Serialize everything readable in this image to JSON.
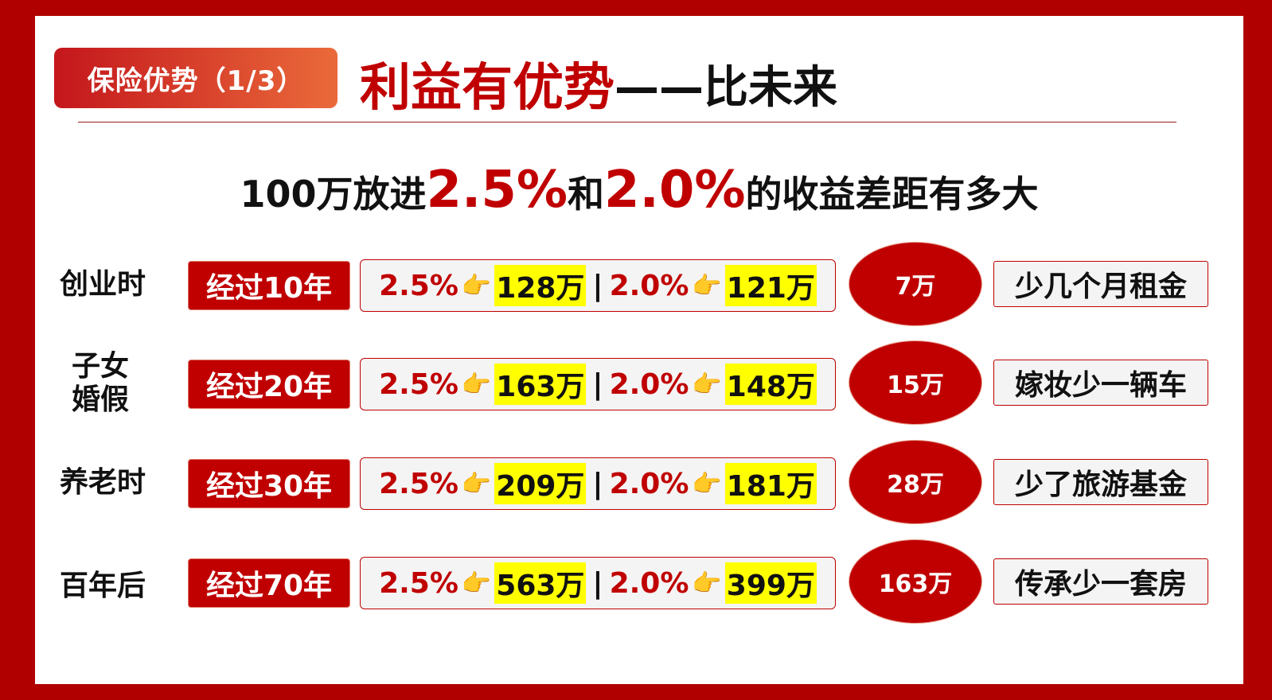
{
  "header": {
    "tag": "保险优势（1/3）",
    "title_red": "利益有优势",
    "title_black": "——比未来"
  },
  "subtitle": {
    "part1": "100万放进",
    "rate_a": "2.5%",
    "part2": "和",
    "rate_b": "2.0%",
    "part3": "的收益差距有多大"
  },
  "hand_icon": "pointing-hand-icon",
  "colors": {
    "brand_red": "#c00000",
    "highlight": "#ffff00"
  },
  "rows": [
    {
      "stage": "创业时",
      "period": "经过10年",
      "rate_a": "2.5%",
      "value_a": "128万",
      "rate_b": "2.0%",
      "value_b": "121万",
      "diff": "7万",
      "effect": "少几个月租金"
    },
    {
      "stage": "子女婚假",
      "period": "经过20年",
      "rate_a": "2.5%",
      "value_a": "163万",
      "rate_b": "2.0%",
      "value_b": "148万",
      "diff": "15万",
      "effect": "嫁妆少一辆车"
    },
    {
      "stage": "养老时",
      "period": "经过30年",
      "rate_a": "2.5%",
      "value_a": "209万",
      "rate_b": "2.0%",
      "value_b": "181万",
      "diff": "28万",
      "effect": "少了旅游基金"
    },
    {
      "stage": "百年后",
      "period": "经过70年",
      "rate_a": "2.5%",
      "value_a": "563万",
      "rate_b": "2.0%",
      "value_b": "399万",
      "diff": "163万",
      "effect": "传承少一套房"
    }
  ]
}
